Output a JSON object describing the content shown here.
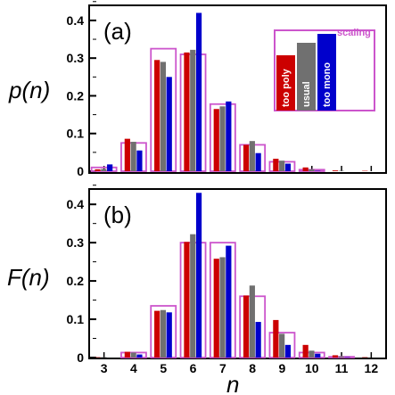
{
  "chart_data": [
    {
      "type": "bar",
      "panel_label": "(a)",
      "ylabel": "p(n)",
      "xlabel": "",
      "categories": [
        3,
        4,
        5,
        6,
        7,
        8,
        9,
        10,
        11,
        12
      ],
      "ylim": [
        0,
        0.44
      ],
      "yticks": [
        "0",
        "0.1",
        "0.2",
        "0.3",
        "0.4"
      ],
      "series": [
        {
          "name": "too poly",
          "color": "#cc0000",
          "values": [
            0.005,
            0.086,
            0.295,
            0.315,
            0.165,
            0.07,
            0.033,
            0.01,
            0.002,
            0.001
          ]
        },
        {
          "name": "usual",
          "color": "#707070",
          "values": [
            0.006,
            0.078,
            0.29,
            0.322,
            0.172,
            0.08,
            0.028,
            0.005,
            0.001,
            0.0
          ]
        },
        {
          "name": "too mono",
          "color": "#0000cc",
          "values": [
            0.018,
            0.055,
            0.25,
            0.42,
            0.185,
            0.048,
            0.02,
            0.001,
            0.0,
            0.0
          ]
        }
      ],
      "scaling_outline": {
        "name": "scaling",
        "color": "#cc55cc",
        "values": [
          0.01,
          0.075,
          0.325,
          0.31,
          0.178,
          0.07,
          0.025,
          0.004,
          0.0,
          0.0
        ]
      },
      "legend": {
        "placement": "top-right",
        "labels": [
          "too poly",
          "usual",
          "too mono"
        ],
        "scaling_label": "scaling"
      }
    },
    {
      "type": "bar",
      "panel_label": "(b)",
      "ylabel": "F(n)",
      "xlabel": "n",
      "categories": [
        3,
        4,
        5,
        6,
        7,
        8,
        9,
        10,
        11,
        12
      ],
      "ylim": [
        0,
        0.44
      ],
      "yticks": [
        "0",
        "0.1",
        "0.2",
        "0.3",
        "0.4"
      ],
      "series": [
        {
          "name": "too poly",
          "color": "#cc0000",
          "values": [
            0.001,
            0.015,
            0.122,
            0.302,
            0.258,
            0.162,
            0.098,
            0.033,
            0.006,
            0.001
          ]
        },
        {
          "name": "usual",
          "color": "#707070",
          "values": [
            0.001,
            0.013,
            0.124,
            0.322,
            0.262,
            0.188,
            0.062,
            0.018,
            0.003,
            0.0
          ]
        },
        {
          "name": "too mono",
          "color": "#0000cc",
          "values": [
            0.0,
            0.008,
            0.118,
            0.43,
            0.292,
            0.093,
            0.033,
            0.01,
            0.001,
            0.0
          ]
        }
      ],
      "scaling_outline": {
        "name": "scaling",
        "color": "#cc55cc",
        "values": [
          0.0,
          0.013,
          0.135,
          0.3,
          0.3,
          0.16,
          0.065,
          0.013,
          0.002,
          0.0
        ]
      }
    }
  ]
}
